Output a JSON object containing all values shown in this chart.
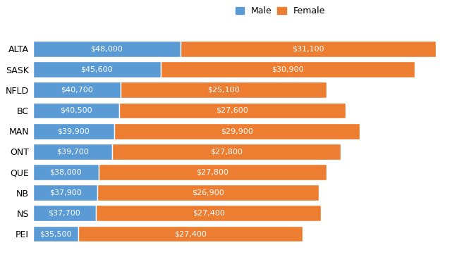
{
  "categories": [
    "ALTA",
    "SASK",
    "NFLD",
    "BC",
    "MAN",
    "ONT",
    "QUE",
    "NB",
    "NS",
    "PEI"
  ],
  "male_values": [
    48000,
    45600,
    40700,
    40500,
    39900,
    39700,
    38000,
    37900,
    37700,
    35500
  ],
  "female_values": [
    31100,
    30900,
    25100,
    27600,
    29900,
    27800,
    27800,
    26900,
    27400,
    27400
  ],
  "male_labels": [
    "$48,000",
    "$45,600",
    "$40,700",
    "$40,500",
    "$39,900",
    "$39,700",
    "$38,000",
    "$37,900",
    "$37,700",
    "$35,500"
  ],
  "female_labels": [
    "$31,100",
    "$30,900",
    "$25,100",
    "$27,600",
    "$29,900",
    "$27,800",
    "$27,800",
    "$26,900",
    "$27,400",
    "$27,400"
  ],
  "male_color": "#5B9BD5",
  "female_color": "#ED7D31",
  "background_color": "#FFFFFF",
  "legend_male": "Male",
  "legend_female": "Female",
  "bar_height": 0.78,
  "label_fontsize": 8,
  "tick_fontsize": 9,
  "legend_fontsize": 9,
  "xlim_min": 30000,
  "xlim_max": 82000
}
